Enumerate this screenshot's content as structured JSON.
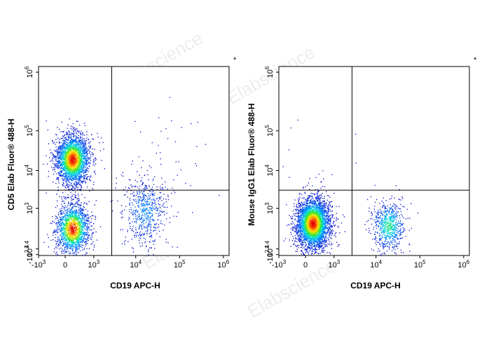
{
  "watermark": "Elabscience",
  "chart_data": [
    {
      "type": "scatter",
      "subtype": "flow-cytometry-density-dot-plot",
      "xlabel": "CD19 APC-H",
      "ylabel": "CD5 Elab Fluor® 488-H",
      "marker": "*",
      "x_scale": "biexponential",
      "y_scale": "biexponential",
      "x_ticks": [
        {
          "value": -1000,
          "base": "-10",
          "exp": "3"
        },
        {
          "value": 0,
          "base": "0",
          "exp": ""
        },
        {
          "value": 1000,
          "base": "10",
          "exp": "3"
        },
        {
          "value": 10000,
          "base": "10",
          "exp": "4"
        },
        {
          "value": 100000,
          "base": "10",
          "exp": "5"
        },
        {
          "value": 1000000,
          "base": "10",
          "exp": "6"
        }
      ],
      "y_ticks": [
        {
          "value": -251,
          "base": "-10",
          "exp": "2.4"
        },
        {
          "value": 251,
          "base": "10",
          "exp": "2.4"
        },
        {
          "value": 1000,
          "base": "10",
          "exp": "3"
        },
        {
          "value": 10000,
          "base": "10",
          "exp": "4"
        },
        {
          "value": 100000,
          "base": "10",
          "exp": "5"
        },
        {
          "value": 1000000,
          "base": "10",
          "exp": "6"
        }
      ],
      "gate": {
        "x": 2600,
        "y": 2500
      },
      "populations": [
        {
          "x_center": 250,
          "y_center": 12000,
          "n": 2600,
          "density": "high"
        },
        {
          "x_center": 250,
          "y_center": 500,
          "n": 1700,
          "density": "high"
        },
        {
          "x_center": 15000,
          "y_center": 900,
          "n": 600,
          "density": "low"
        },
        {
          "x_center": 20000,
          "y_center": 7000,
          "n": 60,
          "density": "sparse"
        }
      ]
    },
    {
      "type": "scatter",
      "subtype": "flow-cytometry-density-dot-plot",
      "xlabel": "CD19 APC-H",
      "ylabel": "Mouse IgG1 Elab Fluor® 488-H",
      "marker": "*",
      "x_scale": "biexponential",
      "y_scale": "biexponential",
      "x_ticks": [
        {
          "value": -1000,
          "base": "-10",
          "exp": "3"
        },
        {
          "value": 0,
          "base": "0",
          "exp": ""
        },
        {
          "value": 1000,
          "base": "10",
          "exp": "3"
        },
        {
          "value": 10000,
          "base": "10",
          "exp": "4"
        },
        {
          "value": 100000,
          "base": "10",
          "exp": "5"
        },
        {
          "value": 1000000,
          "base": "10",
          "exp": "6"
        }
      ],
      "y_ticks": [
        {
          "value": -251,
          "base": "-10",
          "exp": "2.4"
        },
        {
          "value": 251,
          "base": "10",
          "exp": "2.4"
        },
        {
          "value": 1000,
          "base": "10",
          "exp": "3"
        },
        {
          "value": 10000,
          "base": "10",
          "exp": "4"
        },
        {
          "value": 100000,
          "base": "10",
          "exp": "5"
        },
        {
          "value": 1000000,
          "base": "10",
          "exp": "6"
        }
      ],
      "gate": {
        "x": 2600,
        "y": 2500
      },
      "populations": [
        {
          "x_center": 250,
          "y_center": 600,
          "n": 3600,
          "density": "high"
        },
        {
          "x_center": 18000,
          "y_center": 550,
          "n": 700,
          "density": "medium"
        },
        {
          "x_center": 300,
          "y_center": 8000,
          "n": 12,
          "density": "sparse"
        }
      ]
    }
  ]
}
